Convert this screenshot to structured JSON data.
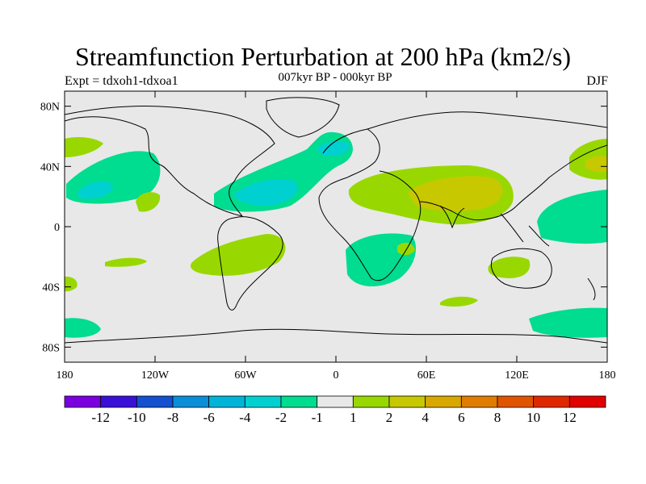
{
  "header": {
    "title": "Streamfunction Perturbation at 200 hPa (km2/s)",
    "left_label": "Expt = tdxoh1-tdxoa1",
    "center_label": "007kyr BP - 000kyr BP",
    "right_label": "DJF"
  },
  "map": {
    "background_color": "#e8e8e8",
    "lon_range": [
      -180,
      180
    ],
    "lat_range": [
      -90,
      90
    ],
    "lon_ticks": [
      {
        "value": -180,
        "label": "180"
      },
      {
        "value": -120,
        "label": "120W"
      },
      {
        "value": -60,
        "label": "60W"
      },
      {
        "value": 0,
        "label": "0"
      },
      {
        "value": 60,
        "label": "60E"
      },
      {
        "value": 120,
        "label": "120E"
      },
      {
        "value": 180,
        "label": "180"
      }
    ],
    "lat_ticks": [
      {
        "value": 80,
        "label": "80N"
      },
      {
        "value": 40,
        "label": "40N"
      },
      {
        "value": 0,
        "label": "0"
      },
      {
        "value": -40,
        "label": "40S"
      },
      {
        "value": -80,
        "label": "80S"
      }
    ]
  },
  "colorbar": {
    "colors": [
      "#7a00e0",
      "#3a10d8",
      "#1450d0",
      "#0a8ed8",
      "#00b4d8",
      "#00d0d0",
      "#00dc90",
      "#e8e8e8",
      "#98d800",
      "#c8c800",
      "#d8a800",
      "#e07c00",
      "#e05400",
      "#e02800",
      "#e00000"
    ],
    "labels": [
      "-12",
      "-10",
      "-8",
      "-6",
      "-4",
      "-2",
      "-1",
      "1",
      "2",
      "4",
      "6",
      "8",
      "10",
      "12"
    ]
  }
}
